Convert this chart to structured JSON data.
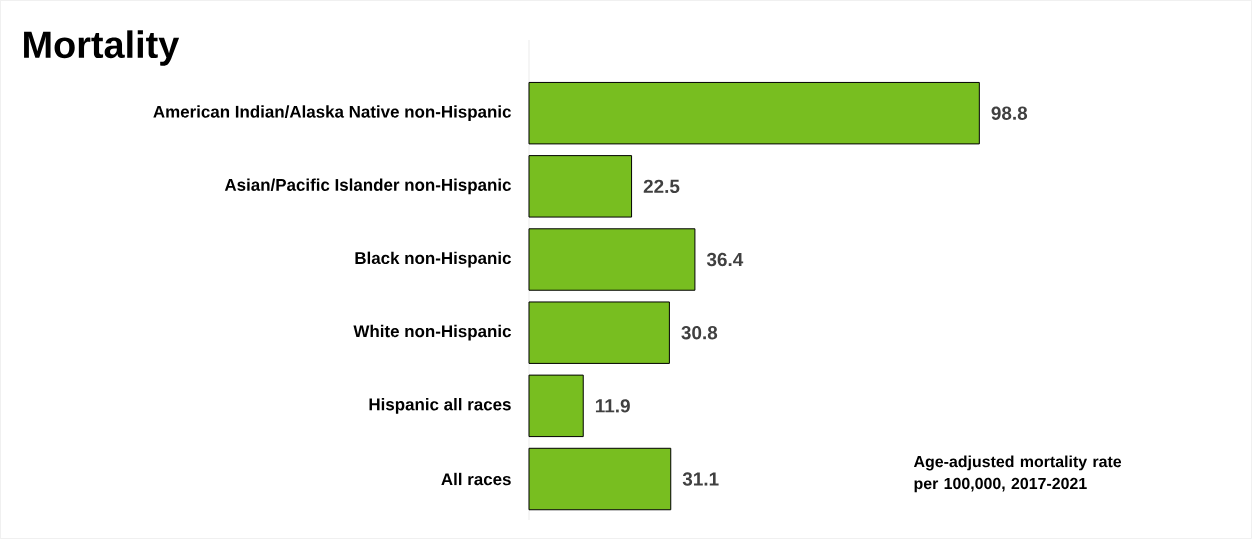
{
  "chart_data": {
    "type": "bar",
    "orientation": "horizontal",
    "title": "Mortality",
    "categories": [
      "American Indian/Alaska Native non-Hispanic",
      "Asian/Pacific Islander non-Hispanic",
      "Black non-Hispanic",
      "White non-Hispanic",
      "Hispanic all races",
      "All races"
    ],
    "values": [
      98.8,
      22.5,
      36.4,
      30.8,
      11.9,
      31.1
    ],
    "color": "#78be20",
    "data_labels": true,
    "annotations": [
      "Age-adjusted mortality rate per 100,000, 2017-2021"
    ]
  }
}
